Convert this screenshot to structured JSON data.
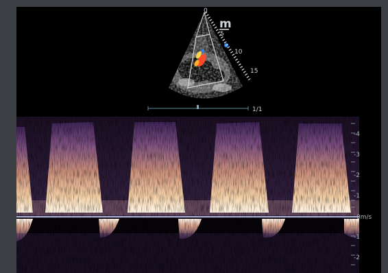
{
  "probe_marker": "m",
  "probe_marker_sub": "5",
  "depth_labels": [
    "0",
    "5",
    "10",
    "15"
  ],
  "page_indicator": "1/1",
  "velocity_ticks": [
    "4",
    "3",
    "2",
    "1",
    "0m/s",
    "1",
    "2"
  ],
  "colors": {
    "background": "#3c3f44",
    "screen": "#000000",
    "label": "#cfd3d8",
    "baseline": "#cfe3ff",
    "doppler_high": "#fff4e0",
    "doppler_mid": "#e2b58c",
    "doppler_low": "#6a3d78",
    "color_flow_red": "#ff4a2a",
    "color_flow_yellow": "#ffd84a",
    "color_flow_blue": "#2b88ff"
  },
  "icons": [
    "echo-sector-image",
    "depth-scale",
    "trackball-marker",
    "spectral-doppler-trace"
  ]
}
